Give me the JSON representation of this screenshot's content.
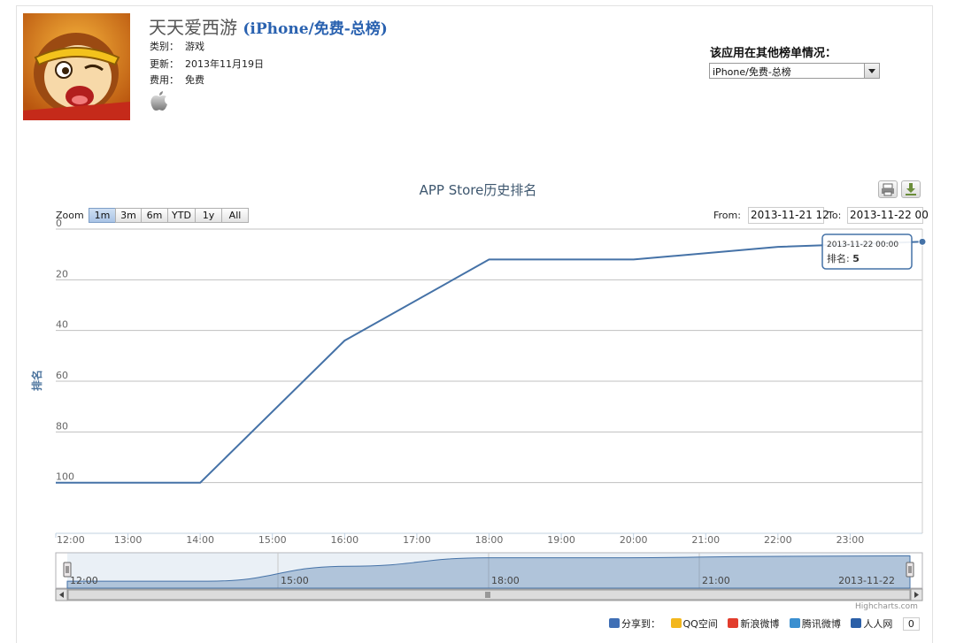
{
  "app": {
    "name": "天天爱西游",
    "chart_label": "(iPhone/免费-总榜)",
    "category_label": "类别：",
    "category": "游戏",
    "updated_label": "更新：",
    "updated": "2013年11月19日",
    "price_label": "费用：",
    "price": "免费"
  },
  "other_charts": {
    "label": "该应用在其他榜单情况：",
    "selected": "iPhone/免费-总榜"
  },
  "toolbar": {
    "print_icon": "print-icon",
    "export_icon": "download-icon"
  },
  "range_selector": {
    "zoom_label": "Zoom",
    "buttons": [
      "1m",
      "3m",
      "6m",
      "YTD",
      "1y",
      "All"
    ],
    "active": "1m",
    "from_label": "From:",
    "from_value": "2013-11-21 12",
    "to_label": "To:",
    "to_value": "2013-11-22 00"
  },
  "tooltip": {
    "date": "2013-11-22 00:00",
    "label": "排名:",
    "value": "5"
  },
  "navigator_labels": [
    "12:00",
    "15:00",
    "18:00",
    "21:00",
    "2013-11-22"
  ],
  "credits": "Highcharts.com",
  "share": {
    "label": "分享到：",
    "items": [
      "QQ空间",
      "新浪微博",
      "腾讯微博",
      "人人网"
    ],
    "count": "0"
  },
  "chart_data": {
    "type": "line",
    "title": "APP Store历史排名",
    "xlabel": "",
    "ylabel": "排名",
    "y_reversed": true,
    "ylim": [
      0,
      120
    ],
    "yticks": [
      0,
      20,
      40,
      60,
      80,
      100
    ],
    "xticks": [
      "12:00",
      "13:00",
      "14:00",
      "15:00",
      "16:00",
      "17:00",
      "18:00",
      "19:00",
      "20:00",
      "21:00",
      "22:00",
      "23:00"
    ],
    "x_range": [
      "2013-11-21 12:00",
      "2013-11-22 00:00"
    ],
    "x": [
      "2013-11-21 12:00",
      "2013-11-21 14:00",
      "2013-11-21 16:00",
      "2013-11-21 18:00",
      "2013-11-21 20:00",
      "2013-11-21 22:00",
      "2013-11-22 00:00"
    ],
    "values": [
      100,
      100,
      44,
      12,
      12,
      7,
      5
    ],
    "grid": true,
    "legend": "none",
    "color": "#4572a7"
  }
}
